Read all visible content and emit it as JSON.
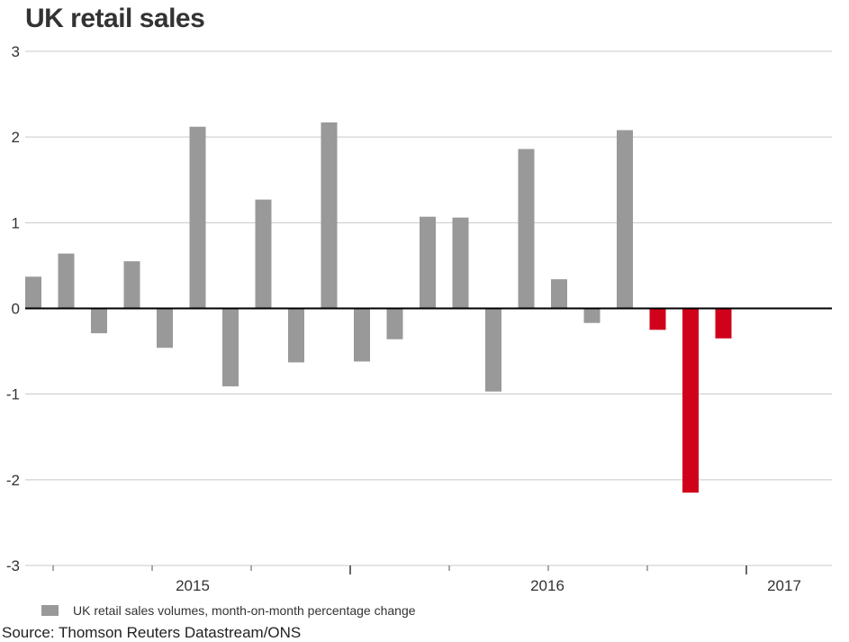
{
  "title": "UK retail sales",
  "legend": {
    "label": "UK retail sales volumes, month-on-month percentage change"
  },
  "source": "Source: Thomson Reuters Datastream/ONS",
  "colors": {
    "positive_gray": "#999999",
    "highlight_red": "#d0021b",
    "zero_line": "#000000",
    "grid": "#c8c8c8"
  },
  "chart_data": {
    "type": "bar",
    "title": "UK retail sales",
    "xlabel": "",
    "ylabel": "",
    "ylim": [
      -3,
      3
    ],
    "yticks": [
      3,
      2,
      1,
      0,
      -1,
      -2,
      -3
    ],
    "year_labels": [
      "2015",
      "2016",
      "2017"
    ],
    "grid": true,
    "series": [
      {
        "name": "UK retail sales volumes, month-on-month percentage change",
        "values": [
          0.37,
          0.64,
          -0.29,
          0.55,
          -0.46,
          2.12,
          -0.91,
          1.27,
          -0.63,
          2.17,
          -0.62,
          -0.36,
          1.07,
          1.06,
          -0.97,
          1.86,
          0.34,
          -0.17,
          2.08,
          -0.25,
          -2.15,
          -0.35
        ]
      }
    ],
    "highlighted_last": 3
  }
}
